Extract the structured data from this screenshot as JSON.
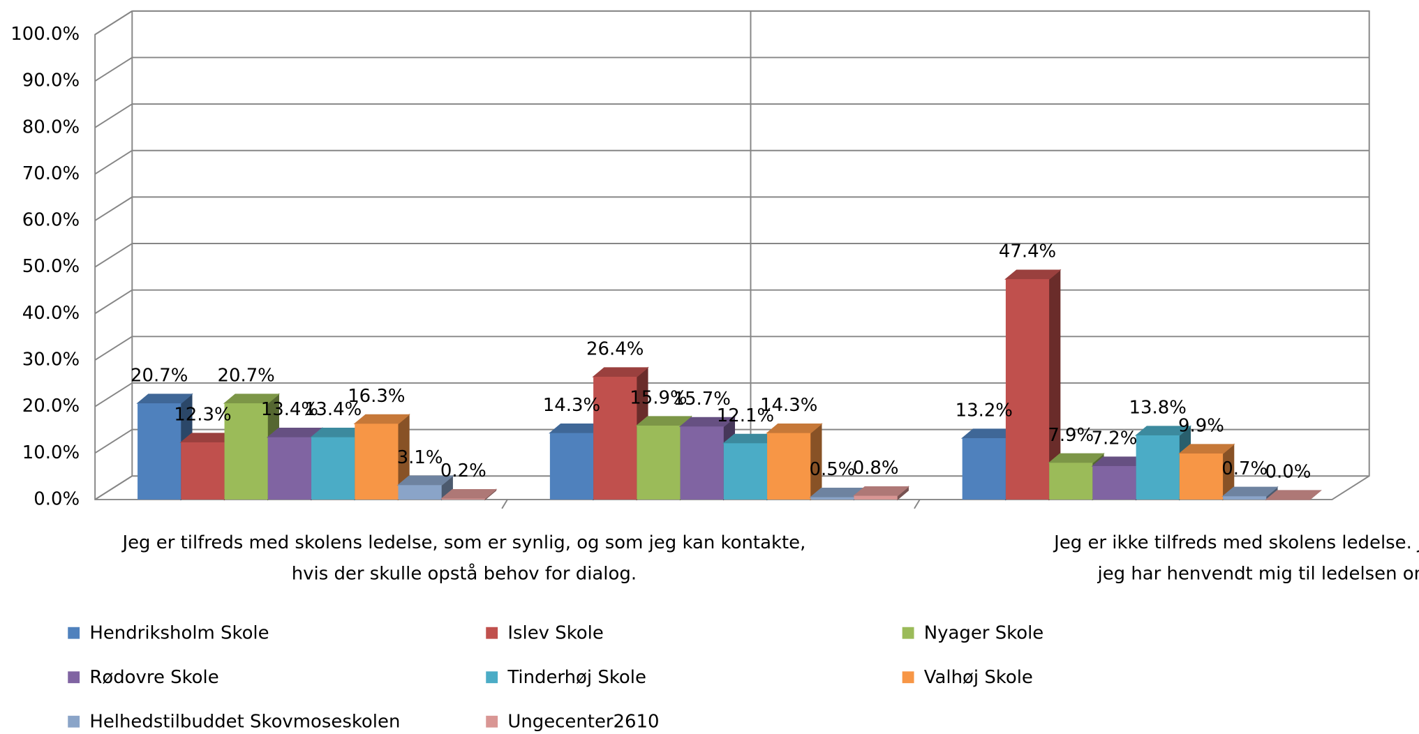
{
  "chart_data": {
    "type": "bar3d",
    "categories": [
      "Jeg er tilfreds med skolens ledelse, som er synlig, og som jeg kan kontakte,\nhvis der skulle opstå behov for dialog.",
      null,
      "Jeg er ikke tilfreds med skolens ledelse. Jeg har ikke\njeg har henvendt mig til ledelsen om konk"
    ],
    "series": [
      {
        "name": "Hendriksholm Skole",
        "color": "#4f81bd",
        "values": [
          20.7,
          14.3,
          13.2
        ],
        "value_labels": [
          "20.7%",
          "14.3%",
          "13.2%"
        ]
      },
      {
        "name": "Islev Skole",
        "color": "#c0504d",
        "values": [
          12.3,
          26.4,
          47.4
        ],
        "value_labels": [
          "12.3%",
          "26.4%",
          "47.4%"
        ]
      },
      {
        "name": "Nyager Skole",
        "color": "#9bbb59",
        "values": [
          20.7,
          15.9,
          7.9
        ],
        "value_labels": [
          "20.7%",
          "15.9%",
          "7.9%"
        ]
      },
      {
        "name": "Rødovre Skole",
        "color": "#8064a2",
        "values": [
          13.4,
          15.7,
          7.2
        ],
        "value_labels": [
          "13.4%",
          "15.7%",
          "7.2%"
        ]
      },
      {
        "name": "Tinderhøj Skole",
        "color": "#4bacc6",
        "values": [
          13.4,
          12.1,
          13.8
        ],
        "value_labels": [
          "13.4%",
          "12.1%",
          "13.8%"
        ]
      },
      {
        "name": "Valhøj Skole",
        "color": "#f79646",
        "values": [
          16.3,
          14.3,
          9.9
        ],
        "value_labels": [
          "16.3%",
          "14.3%",
          "9.9%"
        ]
      },
      {
        "name": "Helhedstilbuddet Skovmoseskolen",
        "color": "#8aa4c8",
        "values": [
          3.1,
          0.5,
          0.7
        ],
        "value_labels": [
          "3.1%",
          "0.5%",
          "0.7%"
        ]
      },
      {
        "name": "Ungecenter2610",
        "color": "#d99694",
        "values": [
          0.2,
          0.8,
          0.0
        ],
        "value_labels": [
          "0.2%",
          "0.8%",
          "0.0%"
        ]
      }
    ],
    "ylim": [
      0,
      100
    ],
    "yticks": [
      {
        "value": 0,
        "label": "0.0%"
      },
      {
        "value": 10,
        "label": "10.0%"
      },
      {
        "value": 20,
        "label": "20.0%"
      },
      {
        "value": 30,
        "label": "30.0%"
      },
      {
        "value": 40,
        "label": "40.0%"
      },
      {
        "value": 50,
        "label": "50.0%"
      },
      {
        "value": 60,
        "label": "60.0%"
      },
      {
        "value": 70,
        "label": "70.0%"
      },
      {
        "value": 80,
        "label": "80.0%"
      },
      {
        "value": 90,
        "label": "90.0%"
      },
      {
        "value": 100,
        "label": "100.0%"
      }
    ],
    "grid": true,
    "legend": "bottom"
  }
}
